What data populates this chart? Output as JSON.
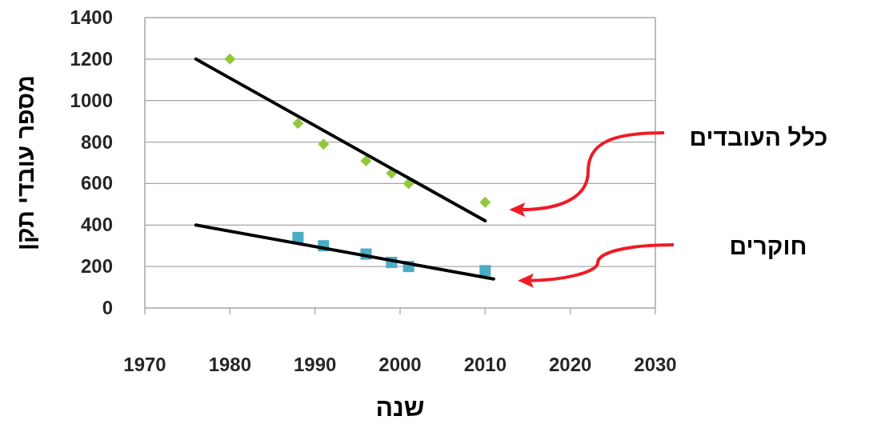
{
  "chart_data": {
    "type": "scatter",
    "xlabel": "שנה",
    "ylabel": "מספר עובדי תקן",
    "xlim": [
      1970,
      2030
    ],
    "xticks": [
      1970,
      1980,
      1990,
      2000,
      2010,
      2020,
      2030
    ],
    "ylim": [
      0,
      1400
    ],
    "yticks": [
      0,
      200,
      400,
      600,
      800,
      1000,
      1200,
      1400
    ],
    "grid": "y",
    "series": [
      {
        "name": "כלל העובדים",
        "type": "scatter",
        "marker": "diamond",
        "color": "#92c83e",
        "x": [
          1980,
          1988,
          1991,
          1996,
          1999,
          2001,
          2010
        ],
        "values": [
          1200,
          890,
          790,
          710,
          650,
          600,
          510
        ]
      },
      {
        "name": "חוקרים",
        "type": "scatter",
        "marker": "square",
        "color": "#4bacc6",
        "x": [
          1988,
          1991,
          1996,
          1999,
          2001,
          2010
        ],
        "values": [
          340,
          300,
          260,
          220,
          200,
          180
        ]
      },
      {
        "type": "line",
        "marker": "none",
        "line_style": "solid",
        "color": "#000000",
        "x": [
          1976,
          2010
        ],
        "values": [
          1200,
          420
        ]
      },
      {
        "type": "line",
        "marker": "none",
        "line_style": "solid",
        "color": "#000000",
        "x": [
          1976,
          2011
        ],
        "values": [
          400,
          140
        ]
      }
    ]
  }
}
